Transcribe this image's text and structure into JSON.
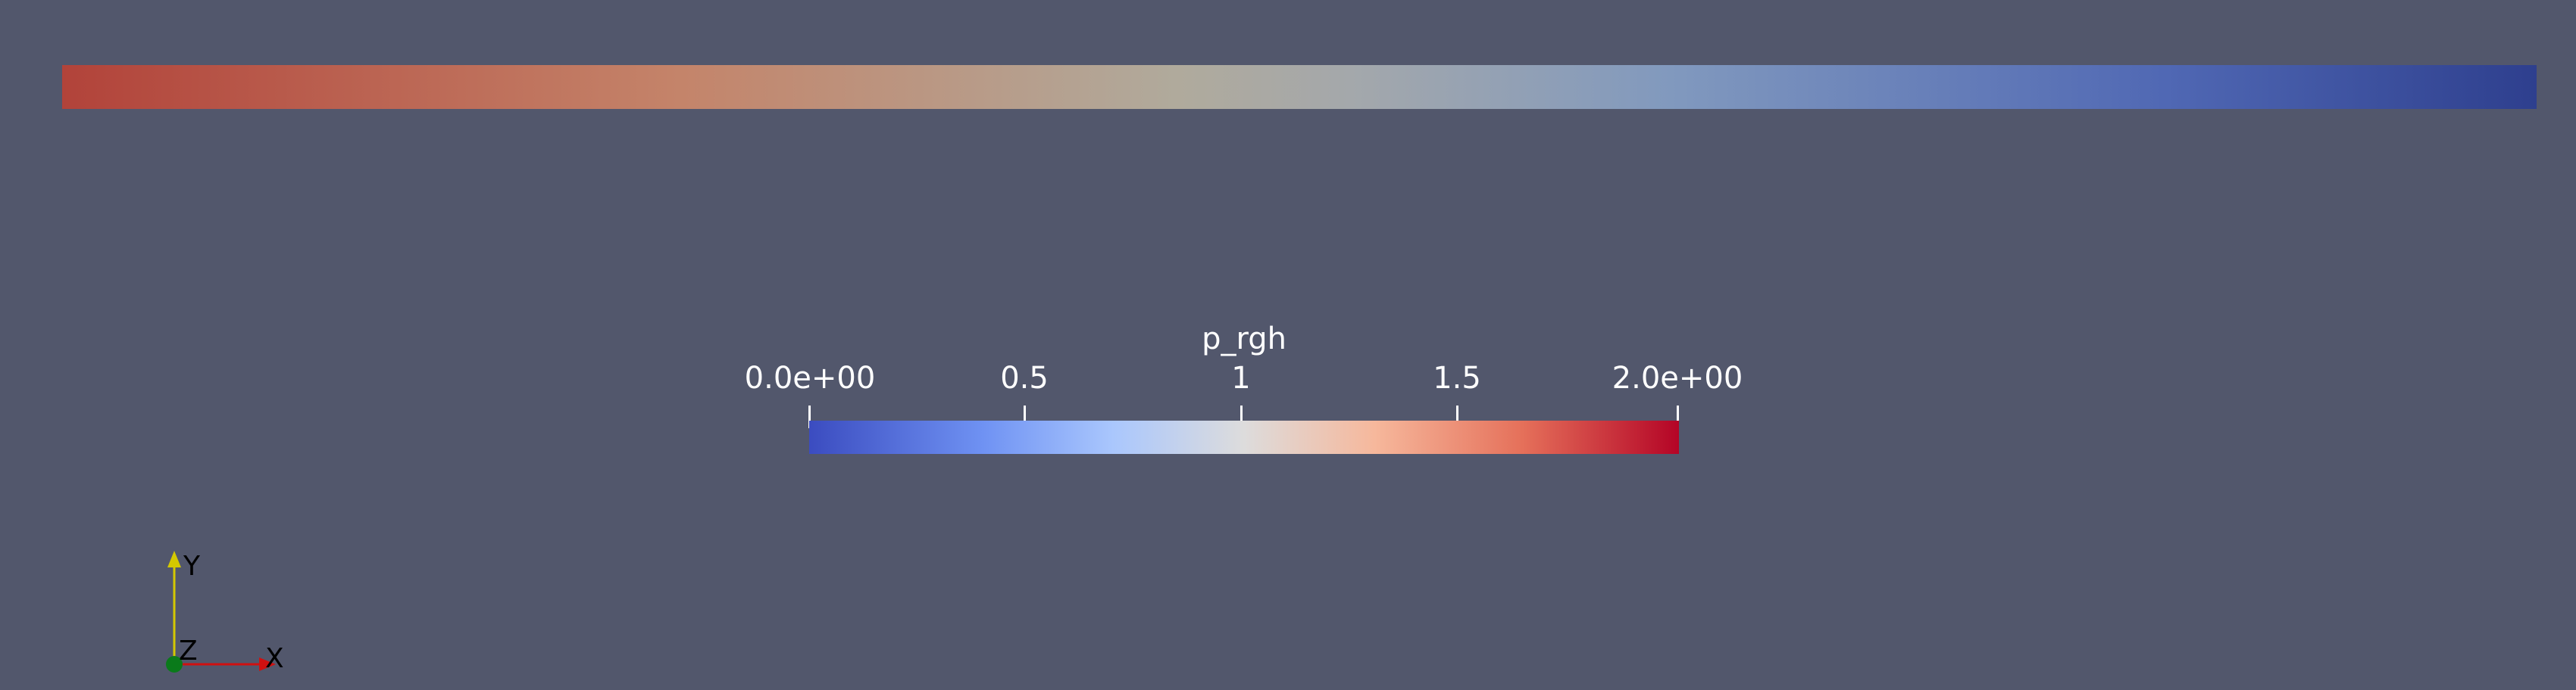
{
  "colors": {
    "background": "#52576c",
    "field_start": "#b2433a",
    "field_end": "#2e3f8e",
    "colormap_low": "#3b4cc0",
    "colormap_mid": "#dddcdc",
    "colormap_high": "#b40426",
    "axis_x": "#d01010",
    "axis_y": "#d4c800",
    "axis_z_origin": "#0a7a1a"
  },
  "legend": {
    "title": "p_rgh",
    "ticks": [
      "0.0e+00",
      "0.5",
      "1",
      "1.5",
      "2.0e+00"
    ]
  },
  "orientation_axes": {
    "x_label": "X",
    "y_label": "Y",
    "z_label": "Z"
  }
}
